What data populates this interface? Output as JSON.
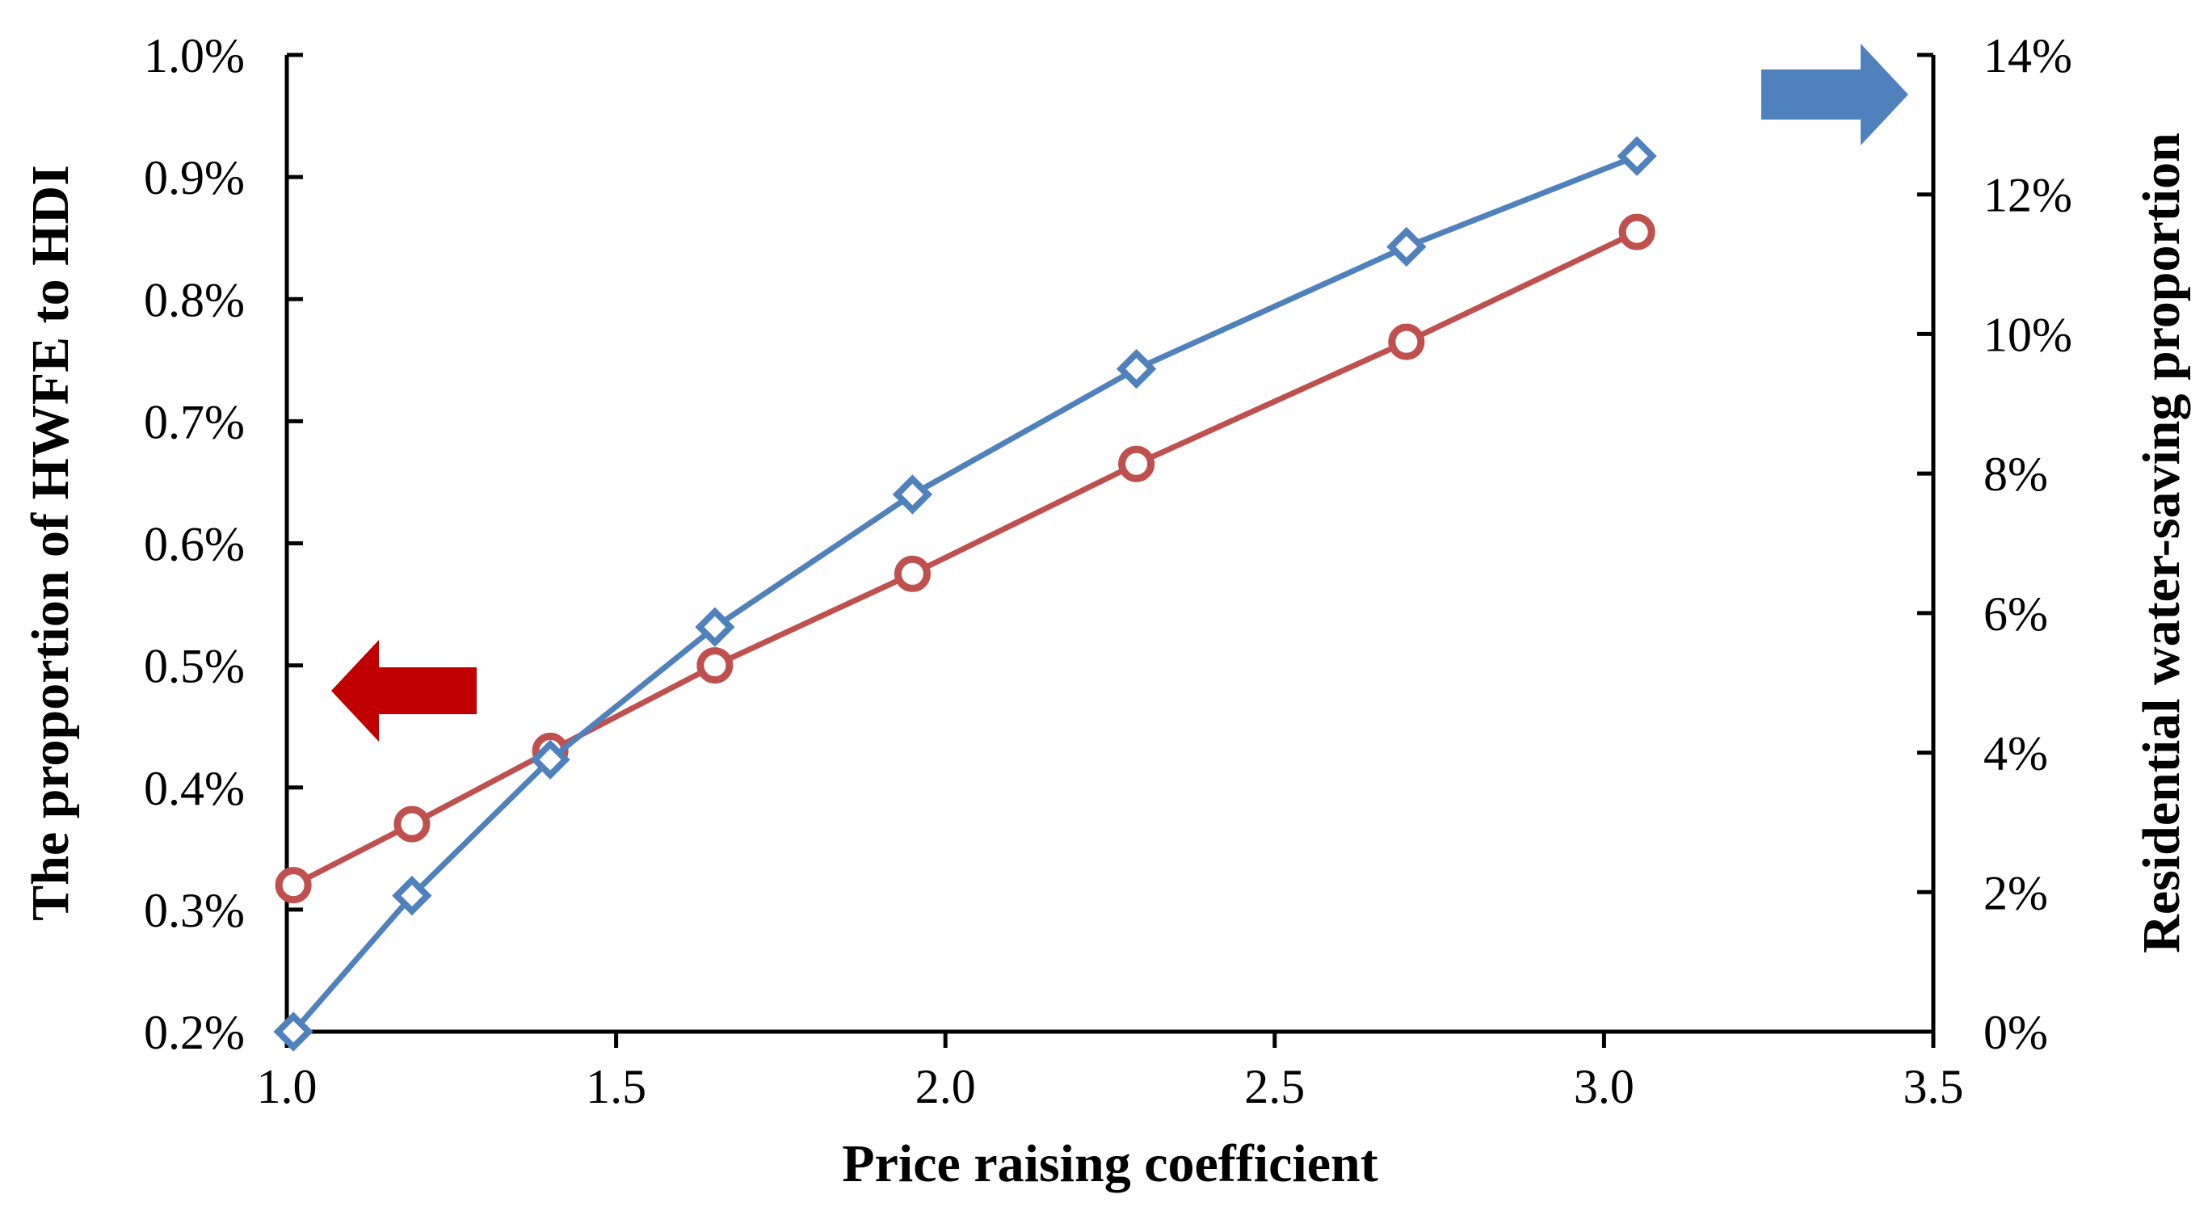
{
  "chart_data": {
    "type": "line",
    "xlabel": "Price raising coefficient",
    "ylabel_left": "The proportion of HWFE to HDI",
    "ylabel_right": "Residential water-saving proportion",
    "xlim": [
      1.0,
      3.5
    ],
    "ylim_left": [
      0.002,
      0.01
    ],
    "ylim_right": [
      0.0,
      0.14
    ],
    "x_ticks": [
      "1.0",
      "1.5",
      "2.0",
      "2.5",
      "3.0",
      "3.5"
    ],
    "y_left_ticks": [
      "0.2%",
      "0.3%",
      "0.4%",
      "0.5%",
      "0.6%",
      "0.7%",
      "0.8%",
      "0.9%",
      "1.0%"
    ],
    "y_right_ticks": [
      "0%",
      "2%",
      "4%",
      "6%",
      "8%",
      "10%",
      "12%",
      "14%"
    ],
    "legend": "none (arrows indicate axis: red arrow → left axis, blue arrow → right axis)",
    "series": [
      {
        "name": "The proportion of HWFE to HDI",
        "axis": "left",
        "marker": "circle",
        "color": "#c0504d",
        "x": [
          1.01,
          1.19,
          1.4,
          1.65,
          1.95,
          2.29,
          2.7,
          3.05
        ],
        "values": [
          0.0032,
          0.0037,
          0.0043,
          0.005,
          0.00575,
          0.00665,
          0.00765,
          0.00855
        ]
      },
      {
        "name": "Residential water-saving proportion",
        "axis": "right",
        "marker": "diamond",
        "color": "#4f81bd",
        "x": [
          1.01,
          1.19,
          1.4,
          1.65,
          1.95,
          2.29,
          2.7,
          3.05
        ],
        "values": [
          0.0,
          0.0195,
          0.039,
          0.058,
          0.077,
          0.095,
          0.1125,
          0.1255
        ]
      }
    ],
    "arrows": [
      {
        "name": "left-axis-indicator",
        "direction": "left",
        "color": "#c00000"
      },
      {
        "name": "right-axis-indicator",
        "direction": "right",
        "color": "#4f81bd"
      }
    ]
  }
}
